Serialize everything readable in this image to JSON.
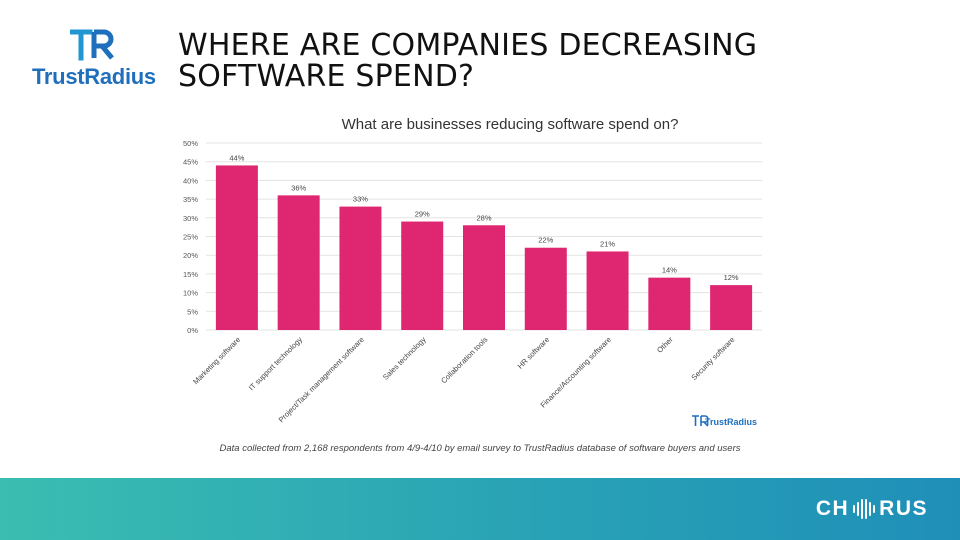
{
  "brand": {
    "logo_text": "TrustRadius",
    "logo_color": "#1f6fbd"
  },
  "slide": {
    "title_line1": "WHERE ARE COMPANIES DECREASING",
    "title_line2": "SOFTWARE SPEND?",
    "footnote": "Data collected from 2,168 respondents from 4/9-4/10 by email survey to TrustRadius database of software buyers and users",
    "watermark": "TrustRadius"
  },
  "footer": {
    "brand_left": "CH",
    "brand_right": "RUS"
  },
  "colors": {
    "bar": "#df2771",
    "grid": "#e3e3e3",
    "band_start": "#3bbdb1",
    "band_end": "#1f8fb8"
  },
  "chart_data": {
    "type": "bar",
    "title": "What are businesses reducing software spend on?",
    "categories": [
      "Marketing software",
      "IT support technology",
      "Project/Task management software",
      "Sales technology",
      "Collaboration tools",
      "HR software",
      "Finance/Accounting software",
      "Other",
      "Security software"
    ],
    "values": [
      44,
      36,
      33,
      29,
      28,
      22,
      21,
      14,
      12
    ],
    "value_labels": [
      "44%",
      "36%",
      "33%",
      "29%",
      "28%",
      "22%",
      "21%",
      "14%",
      "12%"
    ],
    "y_ticks": [
      "0%",
      "5%",
      "10%",
      "15%",
      "20%",
      "25%",
      "30%",
      "35%",
      "40%",
      "45%",
      "50%"
    ],
    "ylim": [
      0,
      50
    ],
    "grid": true,
    "xlabel": "",
    "ylabel": ""
  }
}
